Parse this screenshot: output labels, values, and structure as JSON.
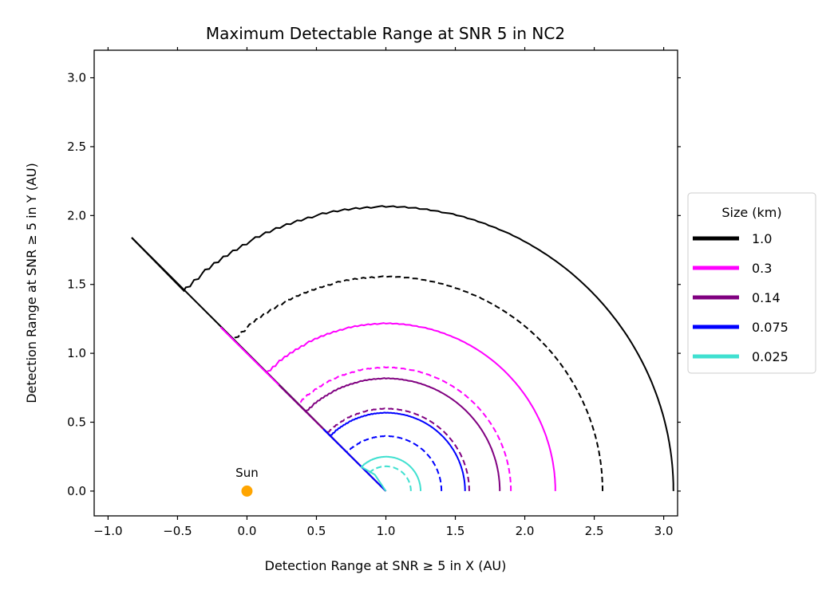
{
  "chart_data": {
    "type": "line",
    "title": "Maximum Detectable Range at SNR 5 in NC2",
    "xlabel": "Detection Range at SNR ≥ 5 in X (AU)",
    "ylabel": "Detection Range at SNR ≥ 5 in Y (AU)",
    "xlim": [
      -1.1,
      3.1
    ],
    "ylim": [
      -0.18,
      3.2
    ],
    "xticks": [
      -1.0,
      -0.5,
      0.0,
      0.5,
      1.0,
      1.5,
      2.0,
      2.5,
      3.0
    ],
    "xtick_labels": [
      "−1.0",
      "−0.5",
      "0.0",
      "0.5",
      "1.0",
      "1.5",
      "2.0",
      "2.5",
      "3.0"
    ],
    "yticks": [
      0.0,
      0.5,
      1.0,
      1.5,
      2.0,
      2.5,
      3.0
    ],
    "ytick_labels": [
      "0.0",
      "0.5",
      "1.0",
      "1.5",
      "2.0",
      "2.5",
      "3.0"
    ],
    "grid": false,
    "legend": {
      "title": "Size (km)",
      "placement": "outside-right"
    },
    "observer": {
      "x": 1.0,
      "y": 0.0
    },
    "cutoff_angle_deg": 135,
    "sun": {
      "label": "Sun",
      "x": 0.0,
      "y": 0.0,
      "color": "#FFA500"
    },
    "series": [
      {
        "name": "1.0",
        "color": "#000000",
        "solid_radius": 2.07,
        "dashed_radius": 1.56,
        "cutoff_end": [
          -0.83,
          1.84
        ]
      },
      {
        "name": "0.3",
        "color": "#FF00FF",
        "solid_radius": 1.22,
        "dashed_radius": 0.9,
        "cutoff_end": [
          -0.19,
          1.19
        ]
      },
      {
        "name": "0.14",
        "color": "#800080",
        "solid_radius": 0.82,
        "dashed_radius": 0.6,
        "cutoff_end": [
          0.23,
          0.77
        ]
      },
      {
        "name": "0.075",
        "color": "#0000FF",
        "solid_radius": 0.57,
        "dashed_radius": 0.4,
        "cutoff_end": [
          0.55,
          0.45
        ]
      },
      {
        "name": "0.025",
        "color": "#40E0D0",
        "solid_radius": 0.25,
        "dashed_radius": 0.18,
        "cutoff_end": [
          0.92,
          0.12
        ]
      }
    ]
  }
}
